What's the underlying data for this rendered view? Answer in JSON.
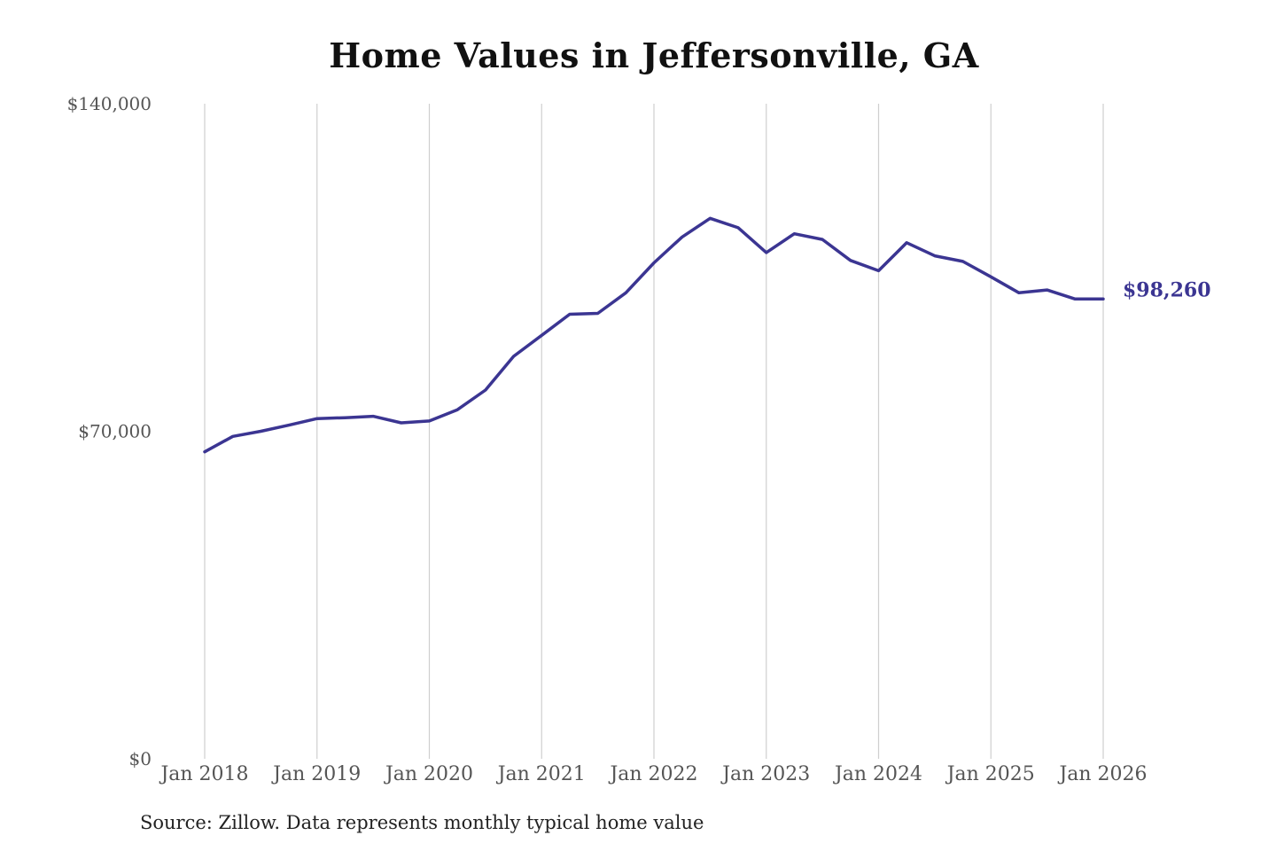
{
  "chart_data": {
    "type": "line",
    "title": "Home Values in Jeffersonville, GA",
    "source": "Source: Zillow. Data represents monthly typical home value",
    "ylim": [
      0,
      140000
    ],
    "y_ticks": [
      0,
      70000,
      140000
    ],
    "y_tick_labels": [
      "$0",
      "$70,000",
      "$140,000"
    ],
    "x_ticks": [
      "2018-01",
      "2019-01",
      "2020-01",
      "2021-01",
      "2022-01",
      "2023-01",
      "2024-01",
      "2025-01",
      "2026-01"
    ],
    "x_tick_labels": [
      "Jan 2018",
      "Jan 2019",
      "Jan 2020",
      "Jan 2021",
      "Jan 2022",
      "Jan 2023",
      "Jan 2024",
      "Jan 2025",
      "Jan 2026"
    ],
    "grid": "vertical",
    "line_color": "#3b3592",
    "end_label": "$98,260",
    "series": [
      {
        "x": [
          "2018-01",
          "2018-04",
          "2018-07",
          "2018-10",
          "2019-01",
          "2019-04",
          "2019-07",
          "2019-10",
          "2020-01",
          "2020-04",
          "2020-07",
          "2020-10",
          "2021-01",
          "2021-04",
          "2021-07",
          "2021-10",
          "2022-01",
          "2022-04",
          "2022-07",
          "2022-10",
          "2023-01",
          "2023-04",
          "2023-07",
          "2023-10",
          "2024-01",
          "2024-04",
          "2024-07",
          "2024-10",
          "2025-01",
          "2025-04",
          "2025-07",
          "2025-10",
          "2026-01"
        ],
        "y": [
          65600,
          68900,
          70000,
          71300,
          72700,
          72900,
          73200,
          71800,
          72200,
          74600,
          78800,
          86000,
          90500,
          95000,
          95200,
          99600,
          106000,
          111500,
          115500,
          113500,
          108200,
          112200,
          111000,
          106500,
          104300,
          110300,
          107500,
          106300,
          103000,
          99600,
          100200,
          98260,
          98260
        ]
      }
    ]
  }
}
